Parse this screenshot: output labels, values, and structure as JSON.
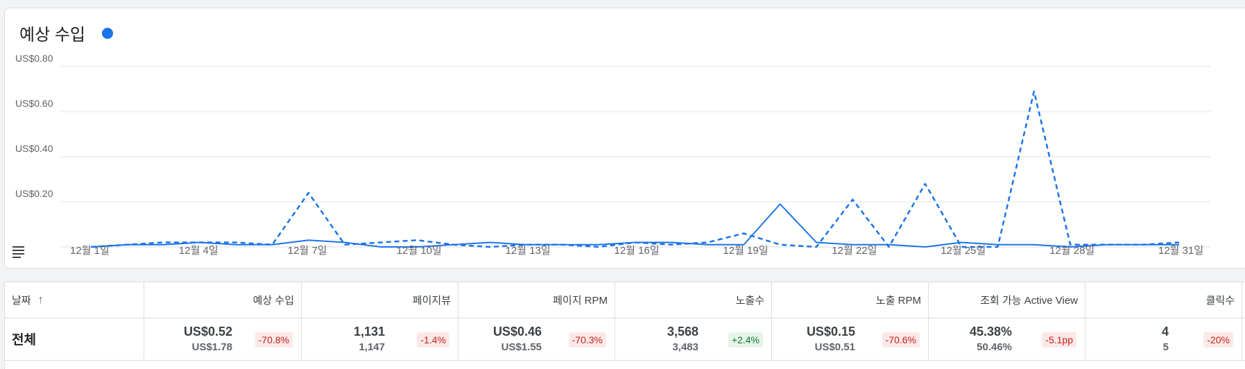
{
  "chart_card": {
    "title": "예상 수입",
    "legend_dot_color": "#1a73e8"
  },
  "chart_data": {
    "type": "line",
    "title": "예상 수입",
    "x": [
      "12월 1일",
      "12월 2일",
      "12월 3일",
      "12월 4일",
      "12월 5일",
      "12월 6일",
      "12월 7일",
      "12월 8일",
      "12월 9일",
      "12월 10일",
      "12월 11일",
      "12월 12일",
      "12월 13일",
      "12월 14일",
      "12월 15일",
      "12월 16일",
      "12월 17일",
      "12월 18일",
      "12월 19일",
      "12월 20일",
      "12월 21일",
      "12월 22일",
      "12월 23일",
      "12월 24일",
      "12월 25일",
      "12월 26일",
      "12월 27일",
      "12월 28일",
      "12월 29일",
      "12월 30일",
      "12월 31일"
    ],
    "x_tick_labels": [
      "12월 1일",
      "12월 4일",
      "12월 7일",
      "12월 10일",
      "12월 13일",
      "12월 16일",
      "12월 19일",
      "12월 22일",
      "12월 25일",
      "12월 28일",
      "12월 31일"
    ],
    "y_tick_labels": [
      "US$0.20",
      "US$0.40",
      "US$0.60",
      "US$0.80"
    ],
    "y_ticks": [
      0.2,
      0.4,
      0.6,
      0.8
    ],
    "ylim": [
      0,
      0.8
    ],
    "grid": true,
    "series": [
      {
        "style": "solid",
        "color": "#1a73e8",
        "values": [
          0.0,
          0.01,
          0.01,
          0.02,
          0.01,
          0.01,
          0.03,
          0.02,
          0.0,
          0.0,
          0.01,
          0.02,
          0.01,
          0.01,
          0.01,
          0.02,
          0.02,
          0.01,
          0.01,
          0.19,
          0.02,
          0.01,
          0.01,
          0.0,
          0.02,
          0.01,
          0.01,
          0.0,
          0.01,
          0.01,
          0.01
        ]
      },
      {
        "style": "dashed",
        "color": "#1a73e8",
        "values": [
          0.0,
          0.01,
          0.02,
          0.02,
          0.02,
          0.01,
          0.24,
          0.01,
          0.02,
          0.03,
          0.01,
          0.0,
          0.01,
          0.01,
          0.0,
          0.02,
          0.01,
          0.02,
          0.06,
          0.01,
          0.0,
          0.21,
          0.0,
          0.28,
          0.0,
          0.0,
          0.69,
          0.01,
          0.01,
          0.01,
          0.02
        ]
      }
    ]
  },
  "table": {
    "headers": [
      {
        "label": "날짜",
        "sort_icon": "arrow-up-icon"
      },
      {
        "label": "예상 수입"
      },
      {
        "label": "페이지뷰"
      },
      {
        "label": "페이지 RPM"
      },
      {
        "label": "노출수"
      },
      {
        "label": "노출 RPM"
      },
      {
        "label": "조회 가능 Active View"
      },
      {
        "label": "클릭수"
      }
    ],
    "total_row": {
      "label": "전체",
      "cells": [
        {
          "value": "US$0.52",
          "previous": "US$1.78",
          "change": "-70.8%",
          "trend": "neg"
        },
        {
          "value": "1,131",
          "previous": "1,147",
          "change": "-1.4%",
          "trend": "neg"
        },
        {
          "value": "US$0.46",
          "previous": "US$1.55",
          "change": "-70.3%",
          "trend": "neg"
        },
        {
          "value": "3,568",
          "previous": "3,483",
          "change": "+2.4%",
          "trend": "pos"
        },
        {
          "value": "US$0.15",
          "previous": "US$0.51",
          "change": "-70.6%",
          "trend": "neg"
        },
        {
          "value": "45.38%",
          "previous": "50.46%",
          "change": "-5.1pp",
          "trend": "neg"
        },
        {
          "value": "4",
          "previous": "5",
          "change": "-20%",
          "trend": "neg"
        }
      ]
    }
  }
}
